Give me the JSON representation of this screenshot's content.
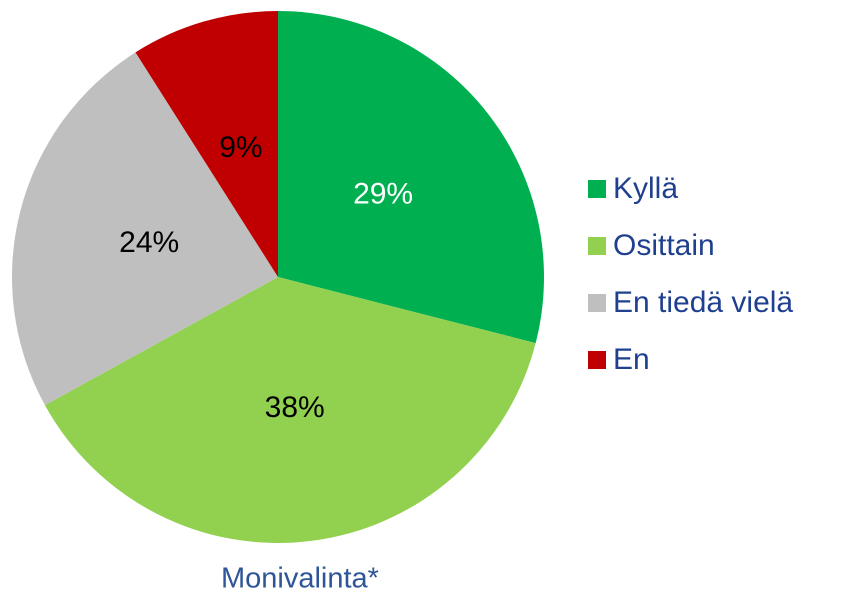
{
  "chart_data": {
    "type": "pie",
    "categories": [
      "Kyllä",
      "Osittain",
      "En tiedä vielä",
      "En"
    ],
    "values": [
      29,
      38,
      24,
      9
    ],
    "value_labels": [
      "29%",
      "38%",
      "24%",
      "9%"
    ],
    "colors": [
      "#00b050",
      "#92d050",
      "#bfbfbf",
      "#c00000"
    ],
    "caption": "Monivalinta*",
    "legend": "right"
  }
}
